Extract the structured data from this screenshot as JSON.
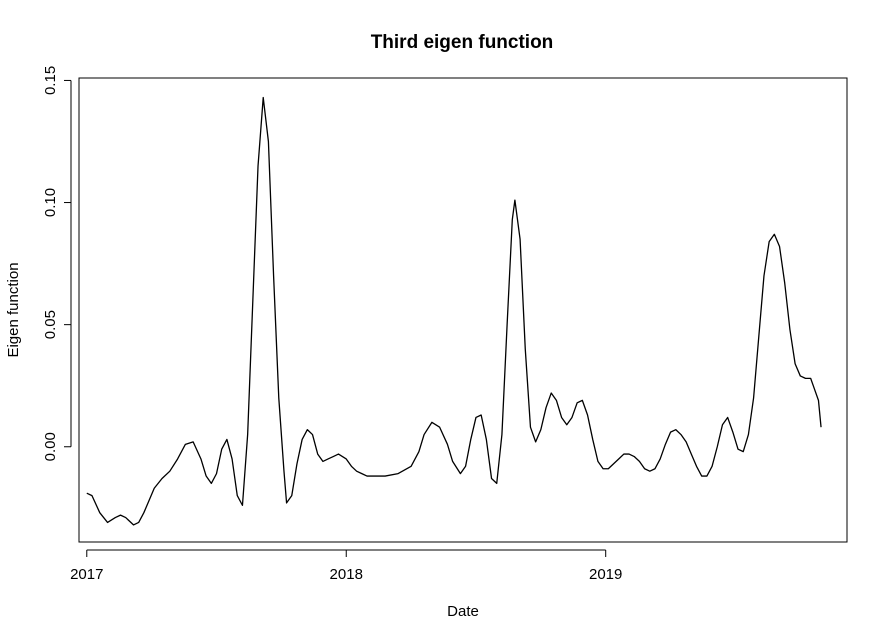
{
  "chart_data": {
    "type": "line",
    "title": "Third eigen function",
    "xlabel": "Date",
    "ylabel": "Eigen function",
    "xlim": [
      2016.97,
      2019.93
    ],
    "ylim": [
      -0.039,
      0.151
    ],
    "x_ticks": [
      {
        "value": 2017,
        "label": "2017"
      },
      {
        "value": 2018,
        "label": "2018"
      },
      {
        "value": 2019,
        "label": "2019"
      }
    ],
    "y_ticks": [
      {
        "value": 0.0,
        "label": "0.00"
      },
      {
        "value": 0.05,
        "label": "0.05"
      },
      {
        "value": 0.1,
        "label": "0.10"
      },
      {
        "value": 0.15,
        "label": "0.15"
      }
    ],
    "grid": false,
    "legend": "none",
    "line_color": "#000000",
    "series": [
      {
        "x": [
          2017.0,
          2017.02,
          2017.05,
          2017.08,
          2017.11,
          2017.13,
          2017.15,
          2017.18,
          2017.2,
          2017.22,
          2017.24,
          2017.26,
          2017.29,
          2017.32,
          2017.35,
          2017.38,
          2017.41,
          2017.44,
          2017.46,
          2017.48,
          2017.5,
          2017.52,
          2017.54,
          2017.56,
          2017.58,
          2017.6,
          2017.62,
          2017.64,
          2017.66,
          2017.68,
          2017.7,
          2017.72,
          2017.74,
          2017.76,
          2017.77,
          2017.79,
          2017.81,
          2017.83,
          2017.85,
          2017.87,
          2017.89,
          2017.91,
          2017.93,
          2017.95,
          2017.97,
          2018.0,
          2018.02,
          2018.04,
          2018.06,
          2018.08,
          2018.11,
          2018.15,
          2018.2,
          2018.25,
          2018.28,
          2018.3,
          2018.33,
          2018.36,
          2018.39,
          2018.41,
          2018.44,
          2018.46,
          2018.48,
          2018.5,
          2018.52,
          2018.54,
          2018.56,
          2018.58,
          2018.6,
          2018.62,
          2018.64,
          2018.65,
          2018.67,
          2018.69,
          2018.71,
          2018.73,
          2018.75,
          2018.77,
          2018.79,
          2018.81,
          2018.83,
          2018.85,
          2018.87,
          2018.89,
          2018.91,
          2018.93,
          2018.95,
          2018.97,
          2018.99,
          2019.01,
          2019.03,
          2019.05,
          2019.07,
          2019.09,
          2019.11,
          2019.13,
          2019.15,
          2019.17,
          2019.19,
          2019.21,
          2019.23,
          2019.25,
          2019.27,
          2019.29,
          2019.31,
          2019.33,
          2019.35,
          2019.37,
          2019.39,
          2019.41,
          2019.43,
          2019.45,
          2019.47,
          2019.49,
          2019.51,
          2019.53,
          2019.55,
          2019.57,
          2019.59,
          2019.61,
          2019.63,
          2019.65,
          2019.67,
          2019.69,
          2019.71,
          2019.73,
          2019.75,
          2019.77,
          2019.79,
          2019.8,
          2019.82,
          2019.83
        ],
        "y": [
          -0.019,
          -0.02,
          -0.027,
          -0.031,
          -0.029,
          -0.028,
          -0.029,
          -0.032,
          -0.031,
          -0.027,
          -0.022,
          -0.017,
          -0.013,
          -0.01,
          -0.005,
          0.001,
          0.002,
          -0.005,
          -0.012,
          -0.015,
          -0.011,
          -0.001,
          0.003,
          -0.005,
          -0.02,
          -0.024,
          0.005,
          0.06,
          0.115,
          0.143,
          0.125,
          0.07,
          0.02,
          -0.01,
          -0.023,
          -0.02,
          -0.007,
          0.003,
          0.007,
          0.005,
          -0.003,
          -0.006,
          -0.005,
          -0.004,
          -0.003,
          -0.005,
          -0.008,
          -0.01,
          -0.011,
          -0.012,
          -0.012,
          -0.012,
          -0.011,
          -0.008,
          -0.002,
          0.005,
          0.01,
          0.008,
          0.001,
          -0.006,
          -0.011,
          -0.008,
          0.003,
          0.012,
          0.013,
          0.003,
          -0.013,
          -0.015,
          0.005,
          0.05,
          0.093,
          0.101,
          0.085,
          0.04,
          0.008,
          0.002,
          0.007,
          0.016,
          0.022,
          0.019,
          0.012,
          0.009,
          0.012,
          0.018,
          0.019,
          0.013,
          0.003,
          -0.006,
          -0.009,
          -0.009,
          -0.007,
          -0.005,
          -0.003,
          -0.003,
          -0.004,
          -0.006,
          -0.009,
          -0.01,
          -0.009,
          -0.005,
          0.001,
          0.006,
          0.007,
          0.005,
          0.002,
          -0.003,
          -0.008,
          -0.012,
          -0.012,
          -0.008,
          0.0,
          0.009,
          0.012,
          0.006,
          -0.001,
          -0.002,
          0.005,
          0.02,
          0.045,
          0.07,
          0.084,
          0.087,
          0.082,
          0.067,
          0.048,
          0.034,
          0.029,
          0.028,
          0.028,
          0.025,
          0.019,
          0.008
        ]
      }
    ]
  }
}
